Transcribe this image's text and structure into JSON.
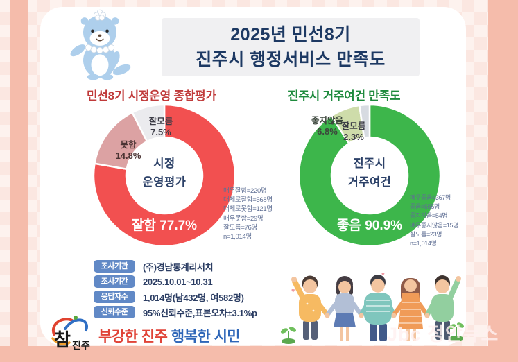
{
  "header": {
    "title_line1": "2025년 민선8기",
    "title_line2": "진주시 행정서비스 만족도"
  },
  "colors": {
    "frame_pink": "#f5bcab",
    "title_navy": "#1d3963",
    "section_red": "#c03a3a",
    "section_green": "#1e8a3d",
    "pill_blue": "#6189c6",
    "slogan_red": "#e04438",
    "slogan_blue": "#2e66b8"
  },
  "chart_data": [
    {
      "type": "pie",
      "variant": "donut",
      "title": "민선8기 시정운영 종합평가",
      "center_lines": [
        "시정",
        "운영평가"
      ],
      "legend_position": "on-slices",
      "slices": [
        {
          "label": "잘함",
          "pct": 77.7,
          "pct_label": "77.7%",
          "color": "#f25050"
        },
        {
          "label": "못함",
          "pct": 14.8,
          "pct_label": "14.8%",
          "color": "#dca2a3"
        },
        {
          "label": "잘모름",
          "pct": 7.5,
          "pct_label": "7.5%",
          "color": "#ebebee"
        }
      ],
      "annotations": [
        "매우잘함=220명",
        "대체로잘함=568명",
        "대체로못함=121명",
        "매우못함=29명",
        "잘모름=76명",
        "n=1,014명"
      ]
    },
    {
      "type": "pie",
      "variant": "donut",
      "title": "진주시 거주여건 만족도",
      "center_lines": [
        "진주시",
        "거주여건"
      ],
      "legend_position": "on-slices",
      "slices": [
        {
          "label": "좋음",
          "pct": 90.9,
          "pct_label": "90.9%",
          "color": "#3db64b"
        },
        {
          "label": "좋지않음",
          "pct": 6.8,
          "pct_label": "6.8%",
          "color": "#cedcaa"
        },
        {
          "label": "잘모름",
          "pct": 2.3,
          "pct_label": "2.3%",
          "color": "#d7dbe1"
        }
      ],
      "annotations": [
        "매우좋음=367명",
        "좋음=555명",
        "좋지않음=54명",
        "매우좋지않음=15명",
        "잘모름=23명",
        "n=1,014명"
      ]
    }
  ],
  "survey_info": {
    "rows": [
      {
        "label": "조사기관",
        "value": "(주)경남통계리서치"
      },
      {
        "label": "조사기간",
        "value": "2025.10.01~10.31"
      },
      {
        "label": "응답자수",
        "value": "1,014명(남432명, 여582명)"
      },
      {
        "label": "신뢰수준",
        "value": "95%신뢰수준,표본오차±3.1%p"
      }
    ]
  },
  "footer": {
    "logo_text": "참진주",
    "slogan_part1": "부강한 진주",
    "slogan_part2": "행복한 시민"
  },
  "watermark": "Jbc 정안뉴스"
}
